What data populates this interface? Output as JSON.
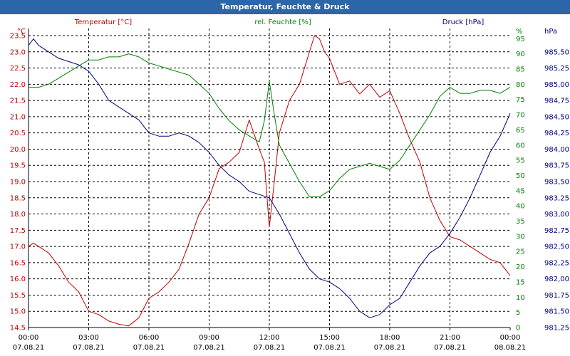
{
  "window": {
    "title": "Temperatur, Feuchte & Druck"
  },
  "chart_data": {
    "type": "line",
    "title": "Temperatur, Feuchte & Druck",
    "x_labels": [
      {
        "time": "00:00",
        "date": "07.08.21"
      },
      {
        "time": "03:00",
        "date": "07.08.21"
      },
      {
        "time": "06:00",
        "date": "07.08.21"
      },
      {
        "time": "09:00",
        "date": "07.08.21"
      },
      {
        "time": "12:00",
        "date": "07.08.21"
      },
      {
        "time": "15:00",
        "date": "07.08.21"
      },
      {
        "time": "18:00",
        "date": "07.08.21"
      },
      {
        "time": "21:00",
        "date": "07.08.21"
      },
      {
        "time": "00:00",
        "date": "08.08.21"
      }
    ],
    "xlim_hours": [
      0,
      24
    ],
    "grid": true,
    "axes": {
      "temperature": {
        "label": "Temperatur [°C]",
        "unit": "°C",
        "side": "left",
        "color": "#c00000",
        "ylim": [
          14.5,
          23.5
        ],
        "ticks": [
          14.5,
          15.0,
          15.5,
          16.0,
          16.5,
          17.0,
          17.5,
          18.0,
          18.5,
          19.0,
          19.5,
          20.0,
          20.5,
          21.0,
          21.5,
          22.0,
          22.5,
          23.0,
          23.5
        ]
      },
      "humidity": {
        "label": "rel. Feuchte [%]",
        "unit": "%",
        "side": "right-inner",
        "color": "#008000",
        "ylim": [
          0,
          96
        ],
        "ticks": [
          0,
          5,
          10,
          15,
          20,
          25,
          30,
          35,
          40,
          45,
          50,
          55,
          60,
          65,
          70,
          75,
          80,
          85,
          90,
          95
        ]
      },
      "pressure": {
        "label": "Druck [hPa]",
        "unit": "hPa",
        "side": "right-outer",
        "color": "#000080",
        "ylim": [
          981.25,
          985.75
        ],
        "ticks": [
          981.25,
          981.5,
          981.75,
          982.0,
          982.25,
          982.5,
          982.75,
          983.0,
          983.25,
          983.5,
          983.75,
          984.0,
          984.25,
          984.5,
          984.75,
          985.0,
          985.25,
          985.5
        ]
      }
    },
    "series": [
      {
        "name": "Temperatur [°C]",
        "axis": "temperature",
        "color": "#c00000",
        "x": [
          0,
          0.25,
          0.5,
          1,
          1.5,
          2,
          2.5,
          3,
          3.5,
          4,
          4.5,
          5,
          5.5,
          6,
          6.5,
          7,
          7.5,
          8,
          8.5,
          9,
          9.5,
          10,
          10.5,
          11,
          11.5,
          11.75,
          12,
          12.25,
          12.5,
          13,
          13.5,
          14,
          14.25,
          14.5,
          14.75,
          15,
          15.5,
          16,
          16.5,
          17,
          17.5,
          18,
          18.5,
          19,
          19.5,
          20,
          20.5,
          21,
          21.5,
          22,
          22.5,
          23,
          23.5,
          24
        ],
        "values": [
          17.0,
          17.1,
          17.0,
          16.8,
          16.4,
          15.9,
          15.6,
          15.0,
          14.9,
          14.7,
          14.6,
          14.55,
          14.8,
          15.4,
          15.6,
          15.9,
          16.3,
          17.1,
          18.0,
          18.5,
          19.4,
          19.6,
          19.9,
          20.9,
          20.0,
          19.6,
          17.6,
          19.0,
          20.5,
          21.5,
          22.0,
          23.0,
          23.5,
          23.4,
          23.0,
          22.8,
          22.0,
          22.1,
          21.7,
          22.0,
          21.6,
          21.8,
          21.1,
          20.3,
          19.6,
          18.5,
          17.8,
          17.3,
          17.2,
          17.0,
          16.8,
          16.6,
          16.5,
          16.1
        ]
      },
      {
        "name": "rel. Feuchte [%]",
        "axis": "humidity",
        "color": "#008000",
        "x": [
          0,
          0.5,
          1,
          1.5,
          2,
          2.5,
          3,
          3.5,
          4,
          4.5,
          5,
          5.5,
          6,
          6.5,
          7,
          7.5,
          8,
          8.5,
          9,
          9.5,
          10,
          10.5,
          11,
          11.5,
          11.75,
          12,
          12.25,
          12.5,
          13,
          13.5,
          14,
          14.5,
          15,
          15.5,
          16,
          16.5,
          17,
          17.5,
          18,
          18.5,
          19,
          19.5,
          20,
          20.5,
          21,
          21.5,
          22,
          22.5,
          23,
          23.5,
          24
        ],
        "values": [
          79,
          79,
          80,
          82,
          84,
          86,
          88,
          88,
          89,
          89,
          90,
          89,
          87,
          86,
          85,
          84,
          83,
          80,
          77,
          72,
          68,
          65,
          63,
          61,
          68,
          81,
          70,
          60,
          54,
          48,
          43,
          43,
          45,
          49,
          52,
          53,
          54,
          53,
          52,
          55,
          60,
          65,
          70,
          76,
          79,
          77,
          77,
          78,
          78,
          77,
          79
        ]
      },
      {
        "name": "Druck [hPa]",
        "axis": "pressure",
        "color": "#000080",
        "x": [
          0,
          0.25,
          0.5,
          1,
          1.5,
          2,
          2.5,
          3,
          3.5,
          4,
          4.5,
          5,
          5.5,
          6,
          6.5,
          7,
          7.5,
          8,
          8.5,
          9,
          9.5,
          10,
          10.5,
          11,
          11.5,
          12,
          12.5,
          13,
          13.5,
          14,
          14.5,
          15,
          15.5,
          16,
          16.5,
          17,
          17.5,
          18,
          18.5,
          19,
          19.5,
          20,
          20.5,
          21,
          21.5,
          22,
          22.5,
          23,
          23.5,
          24
        ],
        "values": [
          985.6,
          985.7,
          985.6,
          985.5,
          985.4,
          985.35,
          985.3,
          985.2,
          985.0,
          984.75,
          984.65,
          984.55,
          984.45,
          984.25,
          984.2,
          984.2,
          984.25,
          984.2,
          984.1,
          983.95,
          983.75,
          983.6,
          983.5,
          983.35,
          983.3,
          983.25,
          983.0,
          982.7,
          982.4,
          982.15,
          982.0,
          981.95,
          981.85,
          981.7,
          981.5,
          981.4,
          981.45,
          981.6,
          981.7,
          981.95,
          982.2,
          982.4,
          982.5,
          982.7,
          982.95,
          983.25,
          983.6,
          983.95,
          984.2,
          984.55
        ]
      }
    ]
  }
}
